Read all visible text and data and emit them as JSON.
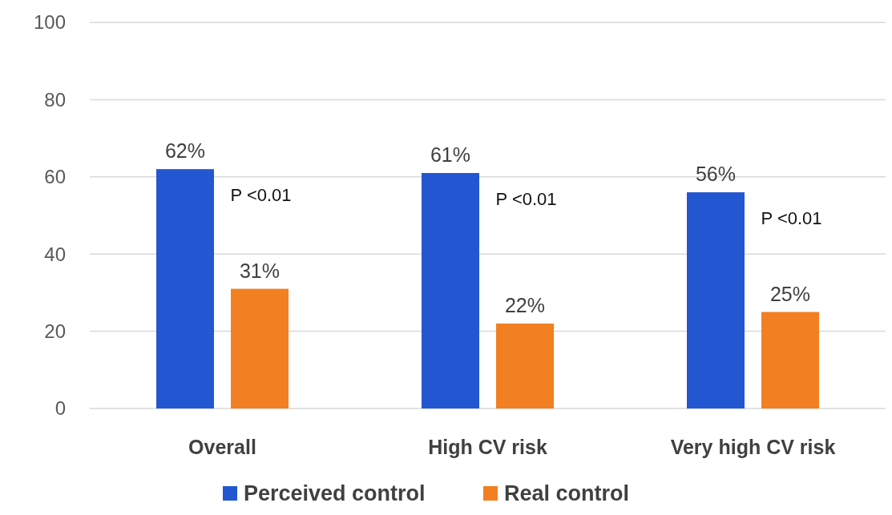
{
  "chart_data": {
    "type": "bar",
    "categories": [
      "Overall",
      "High CV risk",
      "Very high CV risk"
    ],
    "series": [
      {
        "name": "Perceived control",
        "color": "#2357d1",
        "values": [
          62,
          61,
          56
        ],
        "value_labels": [
          "62%",
          "61%",
          "56%"
        ]
      },
      {
        "name": "Real control",
        "color": "#f27f22",
        "values": [
          31,
          22,
          25
        ],
        "value_labels": [
          "31%",
          "22%",
          "25%"
        ]
      }
    ],
    "ylim": [
      0,
      100
    ],
    "yticks": [
      0,
      20,
      40,
      60,
      80,
      100
    ],
    "grid": "y",
    "legend": "bottom",
    "annotations": [
      "P <0.01",
      "P <0.01",
      "P <0.01"
    ]
  }
}
